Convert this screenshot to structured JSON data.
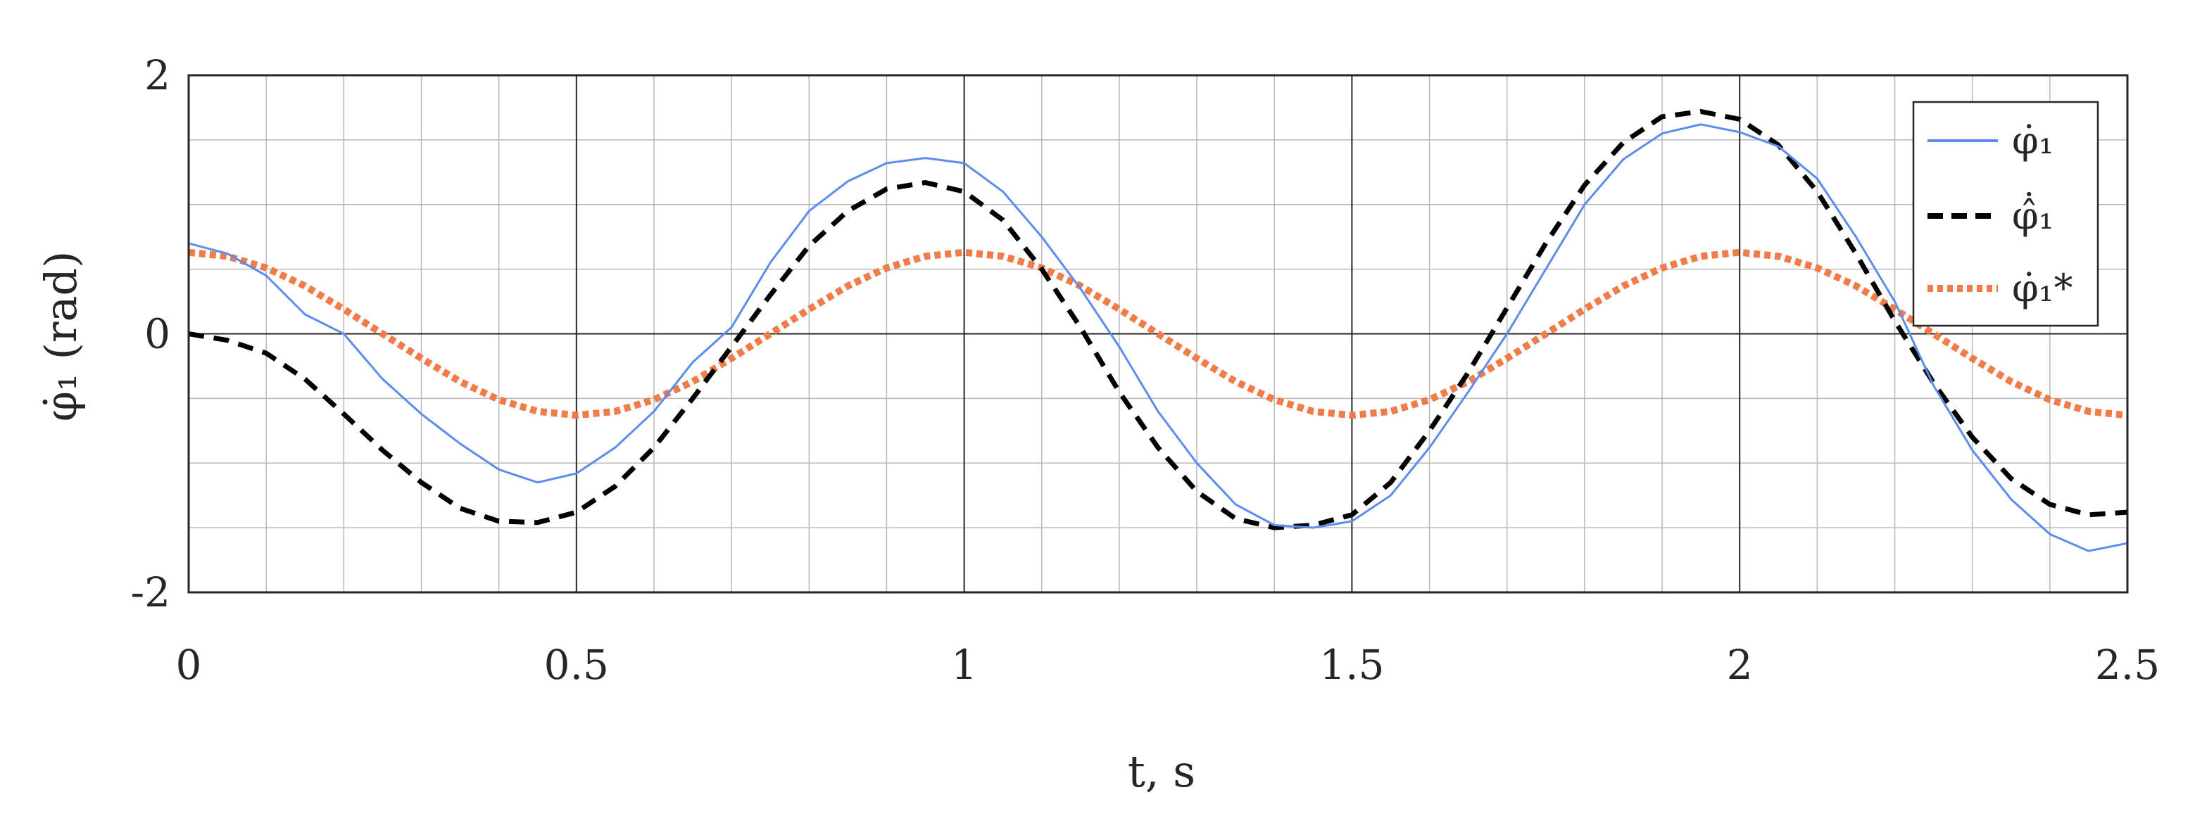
{
  "chart_data": {
    "type": "line",
    "xlabel": "t, s",
    "ylabel": "φ̇₁ (rad)",
    "xlim": [
      0,
      2.5
    ],
    "ylim": [
      -2,
      2
    ],
    "x_ticks": [
      "0",
      "0.5",
      "1",
      "1.5",
      "2",
      "2.5"
    ],
    "y_ticks": [
      "-2",
      "0",
      "2"
    ],
    "grid": true,
    "minor_grid": true,
    "legend_position": "top-right",
    "series": [
      {
        "name": "φ̇₁",
        "color": "#5b8def",
        "style": "solid",
        "x": [
          0,
          0.05,
          0.1,
          0.15,
          0.2,
          0.25,
          0.3,
          0.35,
          0.4,
          0.45,
          0.5,
          0.55,
          0.6,
          0.65,
          0.7,
          0.75,
          0.8,
          0.85,
          0.9,
          0.95,
          1.0,
          1.05,
          1.1,
          1.15,
          1.2,
          1.25,
          1.3,
          1.35,
          1.4,
          1.45,
          1.5,
          1.55,
          1.6,
          1.65,
          1.7,
          1.75,
          1.8,
          1.85,
          1.9,
          1.95,
          2.0,
          2.05,
          2.1,
          2.15,
          2.2,
          2.25,
          2.3,
          2.35,
          2.4,
          2.45,
          2.5
        ],
        "y": [
          0.7,
          0.62,
          0.45,
          0.15,
          0.0,
          -0.35,
          -0.62,
          -0.85,
          -1.05,
          -1.15,
          -1.08,
          -0.88,
          -0.6,
          -0.22,
          0.05,
          0.55,
          0.95,
          1.18,
          1.32,
          1.36,
          1.32,
          1.1,
          0.75,
          0.35,
          -0.1,
          -0.6,
          -1.0,
          -1.32,
          -1.48,
          -1.5,
          -1.45,
          -1.25,
          -0.88,
          -0.45,
          0.0,
          0.5,
          1.0,
          1.35,
          1.55,
          1.62,
          1.56,
          1.45,
          1.2,
          0.75,
          0.25,
          -0.4,
          -0.9,
          -1.28,
          -1.55,
          -1.68,
          -1.62
        ]
      },
      {
        "name": "φ̂̇₁",
        "color": "#000000",
        "style": "dashed",
        "x": [
          0,
          0.05,
          0.1,
          0.15,
          0.2,
          0.25,
          0.3,
          0.35,
          0.4,
          0.45,
          0.5,
          0.55,
          0.6,
          0.65,
          0.7,
          0.75,
          0.8,
          0.85,
          0.9,
          0.95,
          1.0,
          1.05,
          1.1,
          1.15,
          1.2,
          1.25,
          1.3,
          1.35,
          1.4,
          1.45,
          1.5,
          1.55,
          1.6,
          1.65,
          1.7,
          1.75,
          1.8,
          1.85,
          1.9,
          1.95,
          2.0,
          2.05,
          2.1,
          2.15,
          2.2,
          2.25,
          2.3,
          2.35,
          2.4,
          2.45,
          2.5
        ],
        "y": [
          0.0,
          -0.05,
          -0.15,
          -0.35,
          -0.62,
          -0.9,
          -1.15,
          -1.35,
          -1.45,
          -1.46,
          -1.38,
          -1.18,
          -0.88,
          -0.5,
          -0.1,
          0.3,
          0.68,
          0.95,
          1.12,
          1.17,
          1.1,
          0.88,
          0.5,
          0.05,
          -0.45,
          -0.88,
          -1.22,
          -1.43,
          -1.5,
          -1.48,
          -1.4,
          -1.15,
          -0.75,
          -0.3,
          0.2,
          0.7,
          1.15,
          1.48,
          1.68,
          1.72,
          1.66,
          1.46,
          1.1,
          0.62,
          0.1,
          -0.38,
          -0.8,
          -1.12,
          -1.32,
          -1.4,
          -1.38
        ]
      },
      {
        "name": "φ̇₁*",
        "color": "#f07c4a",
        "style": "dotted",
        "x": [
          0,
          0.05,
          0.1,
          0.15,
          0.2,
          0.25,
          0.3,
          0.35,
          0.4,
          0.45,
          0.5,
          0.55,
          0.6,
          0.65,
          0.7,
          0.75,
          0.8,
          0.85,
          0.9,
          0.95,
          1.0,
          1.05,
          1.1,
          1.15,
          1.2,
          1.25,
          1.3,
          1.35,
          1.4,
          1.45,
          1.5,
          1.55,
          1.6,
          1.65,
          1.7,
          1.75,
          1.8,
          1.85,
          1.9,
          1.95,
          2.0,
          2.05,
          2.1,
          2.15,
          2.2,
          2.25,
          2.3,
          2.35,
          2.4,
          2.45,
          2.5
        ],
        "y": [
          0.63,
          0.6,
          0.51,
          0.37,
          0.19,
          0.0,
          -0.19,
          -0.37,
          -0.51,
          -0.6,
          -0.63,
          -0.6,
          -0.51,
          -0.37,
          -0.19,
          0.0,
          0.19,
          0.37,
          0.51,
          0.6,
          0.63,
          0.6,
          0.51,
          0.37,
          0.19,
          0.0,
          -0.19,
          -0.37,
          -0.51,
          -0.6,
          -0.63,
          -0.6,
          -0.51,
          -0.37,
          -0.19,
          0.0,
          0.19,
          0.37,
          0.51,
          0.6,
          0.63,
          0.6,
          0.51,
          0.37,
          0.19,
          0.0,
          -0.19,
          -0.37,
          -0.51,
          -0.6,
          -0.63
        ]
      }
    ]
  }
}
